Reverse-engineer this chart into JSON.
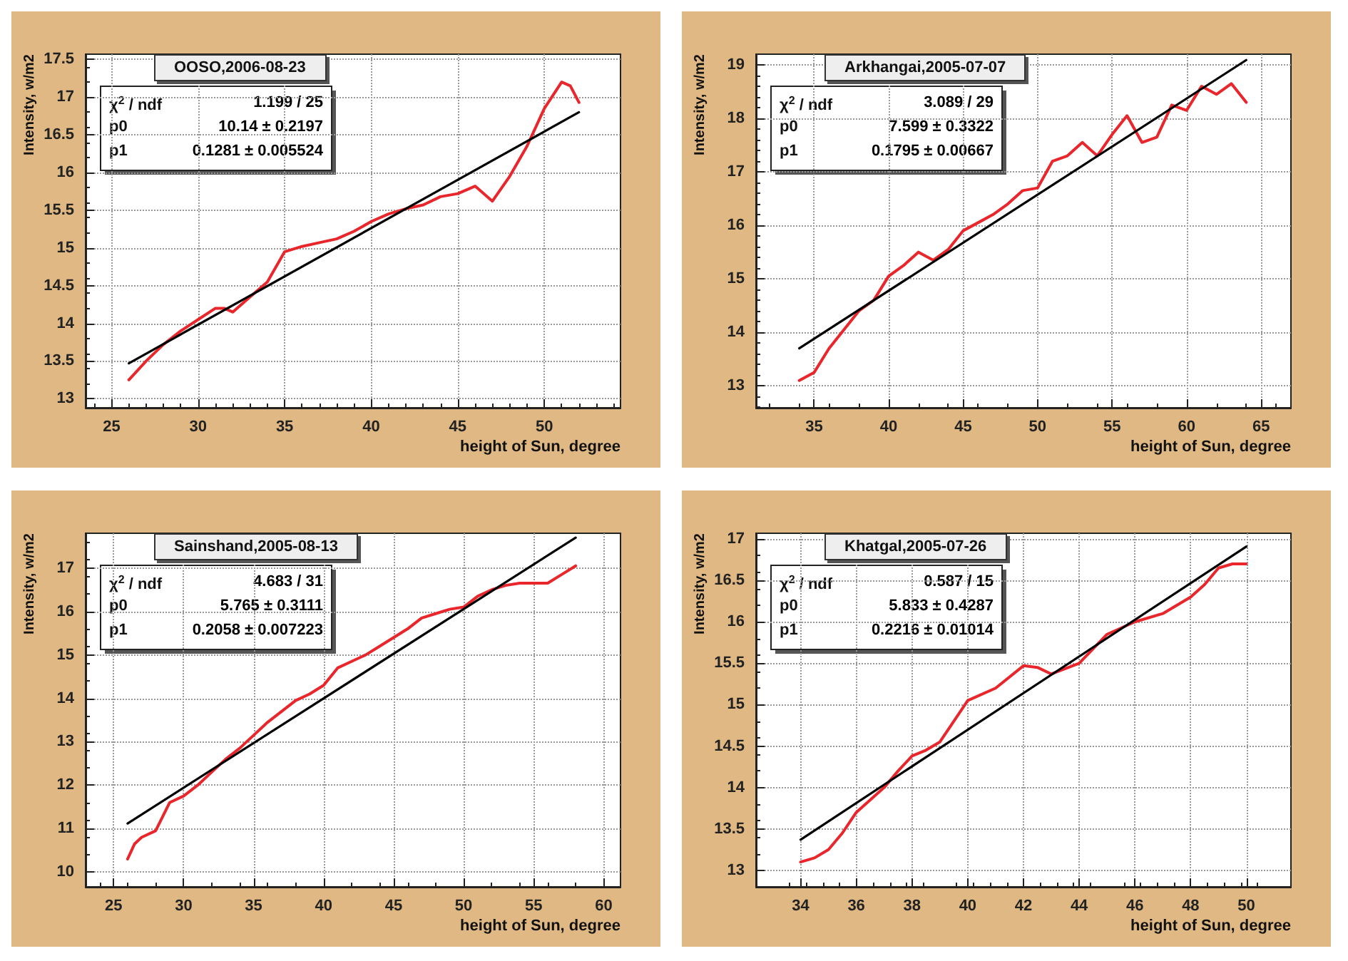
{
  "chart_data": [
    {
      "type": "line",
      "title": "OOSO,2006-08-23",
      "xlabel": "height of Sun, degree",
      "ylabel": "Intensity, w/m2",
      "xlim": [
        23.5,
        54.4
      ],
      "ylim": [
        12.88,
        17.57
      ],
      "xticks": [
        25,
        30,
        35,
        40,
        45,
        50
      ],
      "yticks": [
        13,
        13.5,
        14,
        14.5,
        15,
        15.5,
        16,
        16.5,
        17,
        17.5
      ],
      "grid": true,
      "annotations": [
        "χ$^{2}$ / ndf",
        "1.199 / 25",
        "p0",
        "10.14 ± 0.2197",
        "p1",
        "0.1281 ± 0.005524"
      ],
      "series": [
        {
          "color": "#e8262b",
          "x": [
            26,
            27,
            28,
            29,
            30,
            31,
            31.5,
            32,
            33,
            34,
            35,
            36,
            37,
            38,
            39,
            40,
            41,
            42,
            43,
            44,
            45,
            46,
            47,
            48,
            49,
            50,
            51,
            51.5,
            52
          ],
          "values": [
            13.25,
            13.5,
            13.72,
            13.9,
            14.05,
            14.2,
            14.2,
            14.15,
            14.35,
            14.55,
            14.95,
            15.02,
            15.07,
            15.12,
            15.22,
            15.35,
            15.45,
            15.52,
            15.57,
            15.68,
            15.72,
            15.82,
            15.62,
            15.95,
            16.35,
            16.85,
            17.2,
            17.15,
            16.93
          ]
        },
        {
          "color": "#000000",
          "x": [
            26,
            52
          ],
          "values": [
            13.47,
            16.8
          ]
        }
      ]
    },
    {
      "type": "line",
      "title": "Arkhangai,2005-07-07",
      "xlabel": "height of Sun, degree",
      "ylabel": "Intensity, w/m2",
      "xlim": [
        31.1,
        67
      ],
      "ylim": [
        12.59,
        19.2
      ],
      "xticks": [
        35,
        40,
        45,
        50,
        55,
        60,
        65
      ],
      "yticks": [
        13,
        14,
        15,
        16,
        17,
        18,
        19
      ],
      "grid": true,
      "annotations": [
        "χ$^{2}$ / ndf",
        "3.089 / 29",
        "p0",
        "7.599 ± 0.3322",
        "p1",
        "0.1795 ± 0.00667"
      ],
      "series": [
        {
          "color": "#e8262b",
          "x": [
            34,
            35,
            36,
            37,
            38,
            39,
            40,
            41,
            42,
            43,
            44,
            45,
            46,
            47,
            48,
            49,
            50,
            51,
            52,
            53,
            54,
            55,
            56,
            57,
            58,
            59,
            60,
            61,
            62,
            63,
            64
          ],
          "values": [
            13.1,
            13.25,
            13.7,
            14.05,
            14.4,
            14.6,
            15.05,
            15.25,
            15.5,
            15.35,
            15.55,
            15.9,
            16.05,
            16.2,
            16.4,
            16.65,
            16.7,
            17.2,
            17.3,
            17.55,
            17.3,
            17.7,
            18.05,
            17.55,
            17.65,
            18.25,
            18.15,
            18.6,
            18.45,
            18.65,
            18.3
          ]
        },
        {
          "color": "#000000",
          "x": [
            34,
            64
          ],
          "values": [
            13.7,
            19.09
          ]
        }
      ]
    },
    {
      "type": "line",
      "title": "Sainshand,2005-08-13",
      "xlabel": "height of Sun, degree",
      "ylabel": "Intensity, w/m2",
      "xlim": [
        23,
        61.2
      ],
      "ylim": [
        9.66,
        17.8
      ],
      "xticks": [
        25,
        30,
        35,
        40,
        45,
        50,
        55,
        60
      ],
      "yticks": [
        10,
        11,
        12,
        13,
        14,
        15,
        16,
        17
      ],
      "grid": true,
      "annotations": [
        "χ$^{2}$ / ndf",
        "4.683 / 31",
        "p0",
        "5.765 ± 0.3111",
        "p1",
        "0.2058 ± 0.007223"
      ],
      "series": [
        {
          "color": "#e8262b",
          "x": [
            26,
            26.5,
            27,
            28,
            29,
            30,
            31,
            32,
            33,
            34,
            35,
            36,
            37,
            38,
            39,
            40,
            41,
            42,
            43,
            44,
            45,
            46,
            47,
            48,
            49,
            50,
            51,
            52,
            53,
            54,
            55,
            56,
            57,
            58
          ],
          "values": [
            10.3,
            10.65,
            10.8,
            10.95,
            11.6,
            11.75,
            12,
            12.3,
            12.6,
            12.85,
            13.15,
            13.45,
            13.7,
            13.95,
            14.1,
            14.3,
            14.7,
            14.85,
            15,
            15.2,
            15.4,
            15.6,
            15.85,
            15.95,
            16.05,
            16.1,
            16.35,
            16.5,
            16.6,
            16.65,
            16.65,
            16.65,
            16.85,
            17.05
          ]
        },
        {
          "color": "#000000",
          "x": [
            26,
            58
          ],
          "values": [
            11.12,
            17.7
          ]
        }
      ]
    },
    {
      "type": "line",
      "title": "Khatgal,2005-07-26",
      "xlabel": "height of Sun, degree",
      "ylabel": "Intensity, w/m2",
      "xlim": [
        32.4,
        51.6
      ],
      "ylim": [
        12.8,
        17.07
      ],
      "xticks": [
        34,
        36,
        38,
        40,
        42,
        44,
        46,
        48,
        50
      ],
      "yticks": [
        13,
        13.5,
        14,
        14.5,
        15,
        15.5,
        16,
        16.5,
        17
      ],
      "grid": true,
      "annotations": [
        "χ$^{2}$ / ndf",
        "0.587 / 15",
        "p0",
        "5.833 ± 0.4287",
        "p1",
        "0.2216 ± 0.01014"
      ],
      "series": [
        {
          "color": "#e8262b",
          "x": [
            34,
            34.5,
            35,
            35.5,
            36,
            37,
            37.5,
            38,
            38.5,
            39,
            39.5,
            40,
            41,
            42,
            42.5,
            43,
            44,
            45,
            46,
            47,
            48,
            48.5,
            49,
            49.5,
            50
          ],
          "values": [
            13.1,
            13.15,
            13.25,
            13.45,
            13.7,
            14,
            14.2,
            14.38,
            14.45,
            14.55,
            14.8,
            15.05,
            15.2,
            15.47,
            15.45,
            15.37,
            15.5,
            15.85,
            16,
            16.1,
            16.3,
            16.45,
            16.65,
            16.7,
            16.7
          ]
        },
        {
          "color": "#000000",
          "x": [
            34,
            50
          ],
          "values": [
            13.37,
            16.91
          ]
        }
      ]
    }
  ]
}
